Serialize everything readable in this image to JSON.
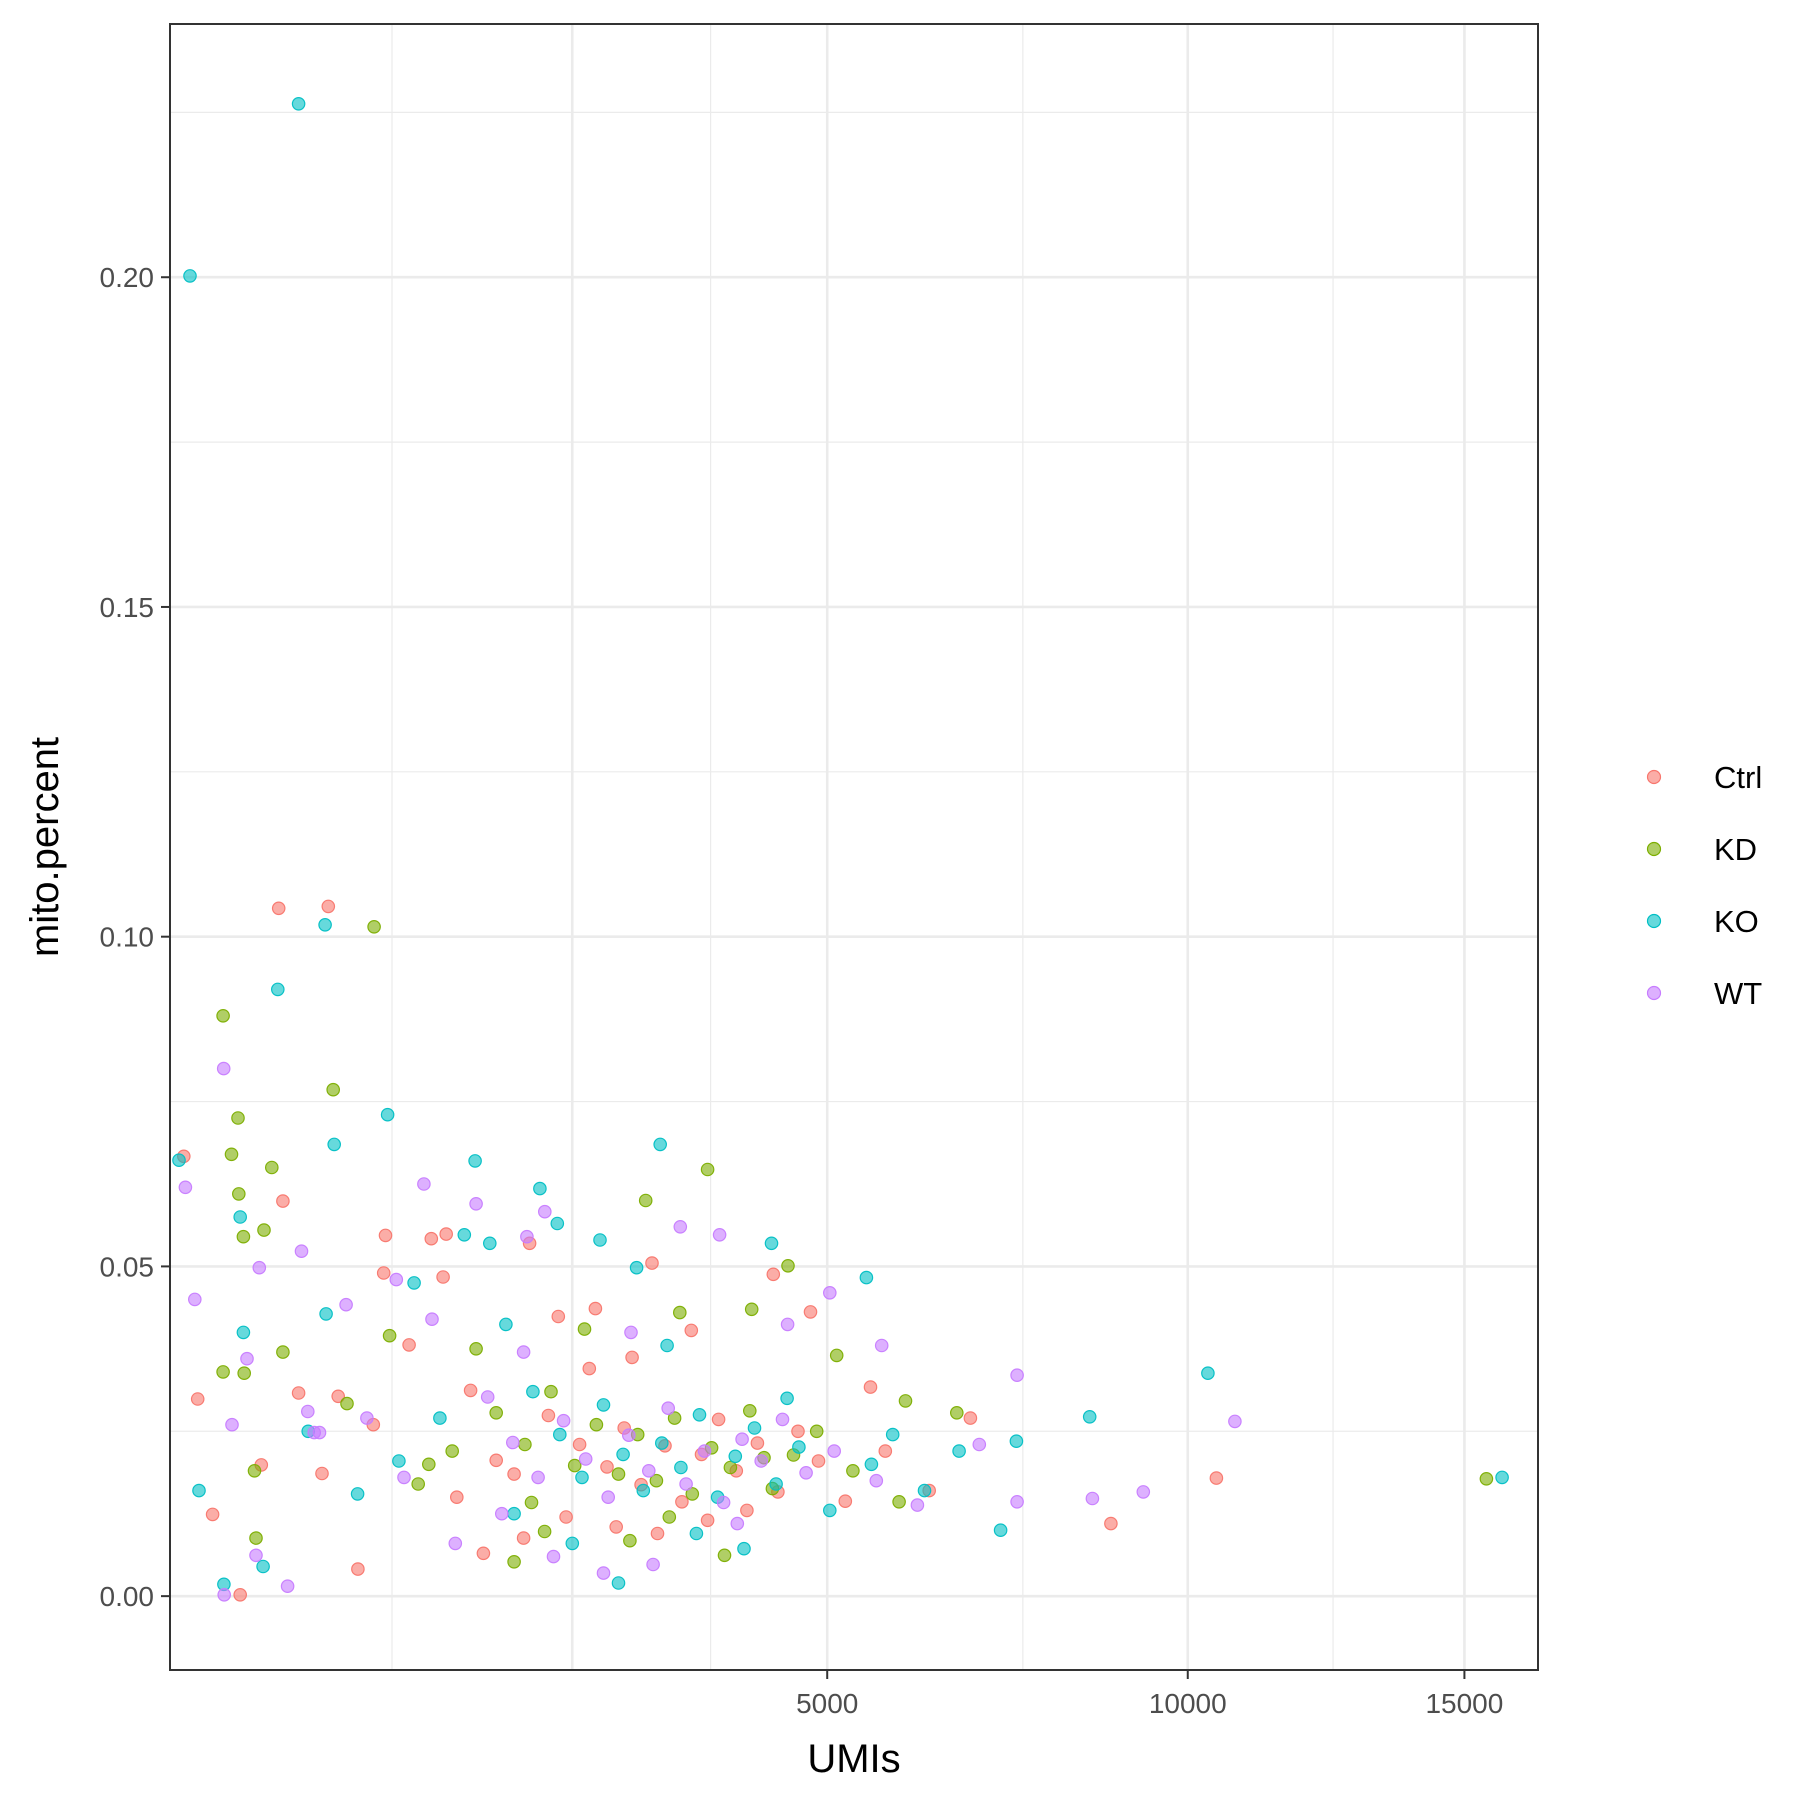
{
  "chart_data": {
    "type": "scatter",
    "xlabel": "UMIs",
    "ylabel": "mito.percent",
    "x_scale": "sqrt",
    "xlim": [
      300,
      16500
    ],
    "ylim": [
      -0.0112,
      0.2384
    ],
    "x_ticks": [
      5000,
      10000,
      15000
    ],
    "x_tick_labels": [
      "5000",
      "10000",
      "15000"
    ],
    "y_ticks": [
      0.0,
      0.05,
      0.1,
      0.15,
      0.2
    ],
    "y_tick_labels": [
      "0.00",
      "0.05",
      "0.10",
      "0.15",
      "0.20"
    ],
    "grid": true,
    "legend_position": "right",
    "colors": {
      "Ctrl": "#F8766D",
      "KD": "#7CAE00",
      "KO": "#00BFC4",
      "WT": "#C77CFF"
    },
    "series": [
      {
        "name": "Ctrl",
        "color": "#F8766D",
        "points": [
          [
            340,
            0.0667
          ],
          [
            383,
            0.0299
          ],
          [
            432,
            0.0124
          ],
          [
            530,
            0.0002
          ],
          [
            702,
            0.0599
          ],
          [
            684,
            0.1043
          ],
          [
            911,
            0.1046
          ],
          [
            771,
            0.0308
          ],
          [
            960,
            0.0303
          ],
          [
            1062,
            0.0041
          ],
          [
            1213,
            0.0547
          ],
          [
            1203,
            0.049
          ],
          [
            1486,
            0.0542
          ],
          [
            1581,
            0.0549
          ],
          [
            1561,
            0.0484
          ],
          [
            2165,
            0.0535
          ],
          [
            2388,
            0.0424
          ],
          [
            2691,
            0.0436
          ],
          [
            3190,
            0.0505
          ],
          [
            3560,
            0.0403
          ],
          [
            4400,
            0.0488
          ],
          [
            4810,
            0.0431
          ],
          [
            5510,
            0.0317
          ],
          [
            6780,
            0.027
          ],
          [
            8790,
            0.011
          ],
          [
            10470,
            0.0179
          ],
          [
            1742,
            0.0312
          ],
          [
            1920,
            0.0206
          ],
          [
            2050,
            0.0185
          ],
          [
            2310,
            0.0274
          ],
          [
            2560,
            0.023
          ],
          [
            2790,
            0.0196
          ],
          [
            2940,
            0.0255
          ],
          [
            3090,
            0.0169
          ],
          [
            3310,
            0.0228
          ],
          [
            3470,
            0.0143
          ],
          [
            3660,
            0.0215
          ],
          [
            3830,
            0.0268
          ],
          [
            4010,
            0.019
          ],
          [
            4230,
            0.0232
          ],
          [
            4450,
            0.0158
          ],
          [
            4670,
            0.025
          ],
          [
            4900,
            0.0205
          ],
          [
            5210,
            0.0144
          ],
          [
            5690,
            0.022
          ],
          [
            6240,
            0.016
          ],
          [
            1350,
            0.0381
          ],
          [
            1145,
            0.026
          ],
          [
            880,
            0.0186
          ],
          [
            612,
            0.0199
          ],
          [
            2450,
            0.012
          ],
          [
            2870,
            0.0105
          ],
          [
            3240,
            0.0095
          ],
          [
            2120,
            0.0088
          ],
          [
            3720,
            0.0115
          ],
          [
            1830,
            0.0065
          ],
          [
            2640,
            0.0345
          ],
          [
            3010,
            0.0362
          ],
          [
            4120,
            0.013
          ],
          [
            1650,
            0.015
          ]
        ]
      },
      {
        "name": "KD",
        "color": "#7CAE00",
        "points": [
          [
            468,
            0.088
          ],
          [
            522,
            0.0725
          ],
          [
            498,
            0.067
          ],
          [
            525,
            0.061
          ],
          [
            542,
            0.0545
          ],
          [
            623,
            0.0555
          ],
          [
            655,
            0.065
          ],
          [
            935,
            0.0768
          ],
          [
            1149,
            0.1015
          ],
          [
            468,
            0.034
          ],
          [
            545,
            0.0338
          ],
          [
            585,
            0.019
          ],
          [
            591,
            0.0088
          ],
          [
            702,
            0.037
          ],
          [
            1005,
            0.0292
          ],
          [
            1236,
            0.0395
          ],
          [
            1470,
            0.02
          ],
          [
            3132,
            0.06
          ],
          [
            3720,
            0.0647
          ],
          [
            4170,
            0.0435
          ],
          [
            4560,
            0.0501
          ],
          [
            5110,
            0.0365
          ],
          [
            5940,
            0.0296
          ],
          [
            6600,
            0.0278
          ],
          [
            15440,
            0.0178
          ],
          [
            1920,
            0.0278
          ],
          [
            2130,
            0.023
          ],
          [
            2330,
            0.031
          ],
          [
            2520,
            0.0198
          ],
          [
            2700,
            0.026
          ],
          [
            2890,
            0.0185
          ],
          [
            3060,
            0.0245
          ],
          [
            3230,
            0.0175
          ],
          [
            3400,
            0.027
          ],
          [
            3570,
            0.0155
          ],
          [
            3760,
            0.0225
          ],
          [
            3950,
            0.0195
          ],
          [
            4150,
            0.0281
          ],
          [
            4390,
            0.0163
          ],
          [
            4620,
            0.0214
          ],
          [
            4880,
            0.025
          ],
          [
            5300,
            0.019
          ],
          [
            5860,
            0.0143
          ],
          [
            1620,
            0.022
          ],
          [
            1405,
            0.017
          ],
          [
            2280,
            0.0098
          ],
          [
            2990,
            0.0084
          ],
          [
            3350,
            0.012
          ],
          [
            2050,
            0.0052
          ],
          [
            3890,
            0.0062
          ],
          [
            1780,
            0.0375
          ],
          [
            2600,
            0.0405
          ],
          [
            3450,
            0.043
          ],
          [
            4300,
            0.021
          ],
          [
            2180,
            0.0142
          ]
        ]
      },
      {
        "name": "KO",
        "color": "#00BFC4",
        "points": [
          [
            359,
            0.2002
          ],
          [
            771,
            0.2263
          ],
          [
            326,
            0.0661
          ],
          [
            680,
            0.092
          ],
          [
            895,
            0.1018
          ],
          [
            1225,
            0.073
          ],
          [
            940,
            0.0685
          ],
          [
            530,
            0.0575
          ],
          [
            542,
            0.04
          ],
          [
            1773,
            0.066
          ],
          [
            2244,
            0.0618
          ],
          [
            3265,
            0.0685
          ],
          [
            3050,
            0.0498
          ],
          [
            4380,
            0.0535
          ],
          [
            5460,
            0.0483
          ],
          [
            10330,
            0.0338
          ],
          [
            15760,
            0.018
          ],
          [
            8470,
            0.0272
          ],
          [
            7410,
            0.0235
          ],
          [
            7190,
            0.01
          ],
          [
            471,
            0.0018
          ],
          [
            619,
            0.0045
          ],
          [
            387,
            0.016
          ],
          [
            900,
            0.0428
          ],
          [
            1700,
            0.0548
          ],
          [
            1875,
            0.0535
          ],
          [
            2380,
            0.0565
          ],
          [
            2730,
            0.054
          ],
          [
            1380,
            0.0475
          ],
          [
            1990,
            0.0412
          ],
          [
            2190,
            0.031
          ],
          [
            2400,
            0.0245
          ],
          [
            2580,
            0.018
          ],
          [
            2760,
            0.029
          ],
          [
            2930,
            0.0215
          ],
          [
            3110,
            0.016
          ],
          [
            3280,
            0.0232
          ],
          [
            3460,
            0.0195
          ],
          [
            3640,
            0.0275
          ],
          [
            3820,
            0.015
          ],
          [
            4000,
            0.0212
          ],
          [
            4200,
            0.0255
          ],
          [
            4430,
            0.017
          ],
          [
            4680,
            0.0226
          ],
          [
            5030,
            0.013
          ],
          [
            5520,
            0.02
          ],
          [
            6180,
            0.016
          ],
          [
            6630,
            0.022
          ],
          [
            1540,
            0.027
          ],
          [
            1290,
            0.0205
          ],
          [
            1060,
            0.0155
          ],
          [
            815,
            0.025
          ],
          [
            2890,
            0.002
          ],
          [
            2500,
            0.008
          ],
          [
            3610,
            0.0095
          ],
          [
            4090,
            0.0072
          ],
          [
            2050,
            0.0125
          ],
          [
            3330,
            0.038
          ],
          [
            4550,
            0.03
          ],
          [
            5780,
            0.0245
          ]
        ]
      },
      {
        "name": "WT",
        "color": "#C77CFF",
        "points": [
          [
            345,
            0.062
          ],
          [
            374,
            0.045
          ],
          [
            470,
            0.08
          ],
          [
            500,
            0.026
          ],
          [
            556,
            0.036
          ],
          [
            604,
            0.0498
          ],
          [
            784,
            0.0523
          ],
          [
            813,
            0.028
          ],
          [
            868,
            0.0248
          ],
          [
            1000,
            0.0442
          ],
          [
            1275,
            0.048
          ],
          [
            1440,
            0.0625
          ],
          [
            1780,
            0.0595
          ],
          [
            2145,
            0.0545
          ],
          [
            2282,
            0.0583
          ],
          [
            3455,
            0.056
          ],
          [
            3840,
            0.0548
          ],
          [
            4555,
            0.0412
          ],
          [
            5030,
            0.046
          ],
          [
            5645,
            0.038
          ],
          [
            7420,
            0.0335
          ],
          [
            8510,
            0.0148
          ],
          [
            9290,
            0.0158
          ],
          [
            10780,
            0.0265
          ],
          [
            7420,
            0.0143
          ],
          [
            472,
            0.0002
          ],
          [
            722,
            0.0015
          ],
          [
            591,
            0.0062
          ],
          [
            843,
            0.0248
          ],
          [
            1490,
            0.042
          ],
          [
            1860,
            0.0302
          ],
          [
            2040,
            0.0233
          ],
          [
            2230,
            0.018
          ],
          [
            2430,
            0.0266
          ],
          [
            2610,
            0.0208
          ],
          [
            2800,
            0.015
          ],
          [
            2980,
            0.0244
          ],
          [
            3160,
            0.019
          ],
          [
            3340,
            0.0285
          ],
          [
            3510,
            0.017
          ],
          [
            3690,
            0.022
          ],
          [
            3880,
            0.0142
          ],
          [
            4070,
            0.0238
          ],
          [
            4270,
            0.0205
          ],
          [
            4500,
            0.0268
          ],
          [
            4760,
            0.0187
          ],
          [
            5080,
            0.022
          ],
          [
            5580,
            0.0175
          ],
          [
            6090,
            0.0138
          ],
          [
            6900,
            0.023
          ],
          [
            1320,
            0.018
          ],
          [
            1110,
            0.027
          ],
          [
            1640,
            0.008
          ],
          [
            2350,
            0.006
          ],
          [
            2760,
            0.0035
          ],
          [
            3200,
            0.0048
          ],
          [
            4020,
            0.011
          ],
          [
            2120,
            0.037
          ],
          [
            3000,
            0.04
          ],
          [
            1960,
            0.0125
          ]
        ]
      }
    ]
  }
}
